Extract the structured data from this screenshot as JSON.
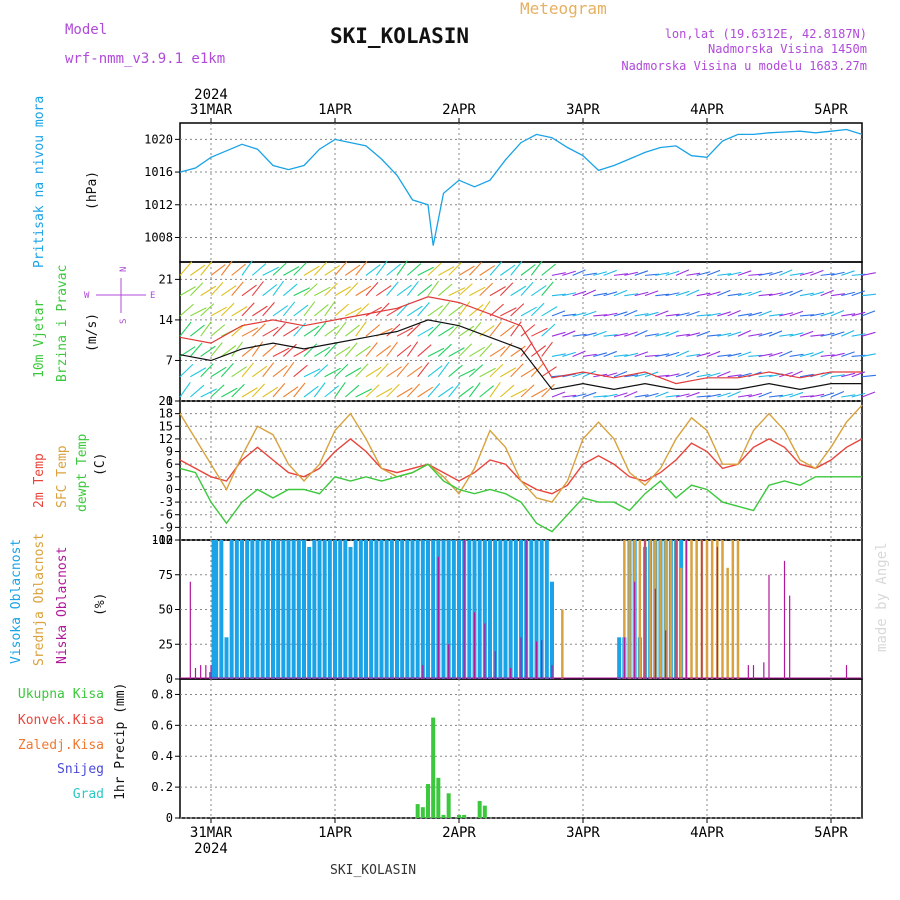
{
  "header": {
    "model_label": "Model",
    "model_name": "wrf-nmm_v3.9.1 e1km",
    "station": "SKI_KOLASIN",
    "product": "Meteogram",
    "coords": "lon,lat (19.6312E, 42.8187N)",
    "elev": "Nadmorska Visina 1450m",
    "model_elev": "Nadmorska Visina u modelu 1683.27m"
  },
  "footer": {
    "station": "SKI_KOLASIN",
    "credit": "made by Angel"
  },
  "colors": {
    "pressure": "#1aa3e6",
    "temp2m": "#e8453c",
    "sfc": "#d9a23e",
    "dew": "#3cc83c",
    "wind_speed": "#111111",
    "wind_gust": "#e03a3a",
    "high_cloud": "#1aa3e6",
    "mid_cloud": "#d9a23e",
    "low_cloud": "#b0189a",
    "precip_total": "#3cc83c",
    "compass": "#b04ad8"
  },
  "time_axis": {
    "year": "2024",
    "days": [
      "31MAR",
      "1APR",
      "2APR",
      "3APR",
      "4APR",
      "5APR"
    ],
    "hours_total": 132
  },
  "panels": {
    "pressure": {
      "label": "Pritisak na nivou mora",
      "unit": "(hPa)"
    },
    "wind": {
      "label1": "10m Vjetar",
      "label2": "Brzina i Pravac",
      "unit": "(m/s)",
      "compass_e": "E",
      "compass_w": "W",
      "compass_n": "N",
      "compass_s": "S"
    },
    "temp": {
      "label1": "2m Temp",
      "label2": "SFC Temp",
      "label3": "dewpt Temp",
      "unit": "(C)"
    },
    "cloud": {
      "label1": "Visoka Oblacnost",
      "label2": "Srednja Oblacnost",
      "label3": "Niska Oblacnost",
      "unit": "(%)"
    },
    "precip": {
      "labels": [
        "Ukupna Kisa",
        "Konvek.Kisa",
        "Zaledj.Kisa",
        "Snijeg",
        "Grad"
      ],
      "unit": "1hr Precip (mm)"
    }
  },
  "chart_data": [
    {
      "type": "line",
      "name": "pressure",
      "ylabel": "(hPa)",
      "ylim": [
        1005,
        1022
      ],
      "yticks": [
        1008,
        1012,
        1016,
        1020
      ],
      "x": [
        0,
        3,
        6,
        9,
        12,
        15,
        18,
        21,
        24,
        27,
        30,
        33,
        36,
        39,
        42,
        45,
        48,
        49,
        51,
        54,
        57,
        60,
        63,
        66,
        69,
        72,
        75,
        78,
        81,
        84,
        87,
        90,
        93,
        96,
        99,
        102,
        105,
        108,
        111,
        114,
        117,
        120,
        123,
        126,
        129,
        132
      ],
      "values": [
        1016,
        1016.5,
        1017.8,
        1018.6,
        1019.4,
        1018.8,
        1016.8,
        1016.3,
        1016.8,
        1018.8,
        1020.0,
        1019.6,
        1019.2,
        1017.6,
        1015.6,
        1012.6,
        1012.0,
        1007.0,
        1013.4,
        1015.0,
        1014.2,
        1015.0,
        1017.5,
        1019.6,
        1020.6,
        1020.2,
        1019.0,
        1018.0,
        1016.2,
        1016.8,
        1017.6,
        1018.4,
        1019.0,
        1019.2,
        1018.0,
        1017.8,
        1019.8,
        1020.6,
        1020.6,
        1020.8,
        1020.9,
        1021.0,
        1020.8,
        1021.0,
        1021.2,
        1020.6
      ]
    },
    {
      "type": "line",
      "name": "wind",
      "ylabel": "(m/s)",
      "ylim": [
        0,
        24
      ],
      "yticks": [
        0,
        7,
        14,
        21
      ],
      "x": [
        0,
        6,
        12,
        18,
        24,
        30,
        36,
        42,
        48,
        54,
        60,
        66,
        72,
        78,
        84,
        90,
        96,
        102,
        108,
        114,
        120,
        126,
        132
      ],
      "series": [
        {
          "key": "speed",
          "values": [
            8,
            7,
            9,
            10,
            9,
            10,
            11,
            12,
            14,
            13,
            11,
            9,
            2,
            3,
            2,
            3,
            2,
            2,
            2,
            3,
            2,
            3,
            3
          ]
        },
        {
          "key": "gust",
          "values": [
            11,
            10,
            13,
            14,
            13,
            14,
            15,
            16,
            18,
            17,
            15,
            13,
            4,
            5,
            4,
            5,
            3,
            4,
            4,
            5,
            4,
            5,
            5
          ]
        }
      ]
    },
    {
      "type": "line",
      "name": "temperature",
      "ylabel": "(C)",
      "ylim": [
        -12,
        21
      ],
      "yticks": [
        -12,
        -9,
        -6,
        -3,
        0,
        3,
        6,
        9,
        12,
        15,
        18,
        21
      ],
      "x": [
        0,
        3,
        6,
        9,
        12,
        15,
        18,
        21,
        24,
        27,
        30,
        33,
        36,
        39,
        42,
        45,
        48,
        51,
        54,
        57,
        60,
        63,
        66,
        69,
        72,
        75,
        78,
        81,
        84,
        87,
        90,
        93,
        96,
        99,
        102,
        105,
        108,
        111,
        114,
        117,
        120,
        123,
        126,
        129,
        132
      ],
      "series": [
        {
          "key": "t2m",
          "values": [
            7,
            5,
            3,
            2,
            7,
            10,
            7,
            4,
            3,
            5,
            9,
            12,
            9,
            5,
            4,
            5,
            6,
            4,
            2,
            4,
            7,
            6,
            2,
            0,
            -1,
            1,
            6,
            8,
            6,
            3,
            2,
            4,
            7,
            11,
            9,
            5,
            6,
            10,
            12,
            10,
            6,
            5,
            7,
            10,
            12
          ]
        },
        {
          "key": "sfc",
          "values": [
            18,
            12,
            6,
            0,
            8,
            15,
            13,
            6,
            2,
            6,
            14,
            18,
            12,
            5,
            3,
            4,
            6,
            3,
            -1,
            5,
            14,
            10,
            2,
            -2,
            -3,
            2,
            12,
            16,
            12,
            4,
            1,
            5,
            12,
            17,
            14,
            6,
            6,
            14,
            18,
            14,
            7,
            5,
            10,
            16,
            20
          ]
        },
        {
          "key": "dew",
          "values": [
            5,
            4,
            -3,
            -8,
            -3,
            0,
            -2,
            0,
            0,
            -1,
            3,
            2,
            3,
            2,
            3,
            4,
            6,
            2,
            0,
            -1,
            0,
            -1,
            -3,
            -8,
            -10,
            -6,
            -2,
            -3,
            -3,
            -5,
            -1,
            2,
            -2,
            1,
            0,
            -3,
            -4,
            -5,
            1,
            2,
            1,
            3,
            3,
            3,
            3
          ]
        }
      ]
    },
    {
      "type": "bar",
      "name": "cloud_cover",
      "ylabel": "(%)",
      "ylim": [
        0,
        100
      ],
      "yticks": [
        0,
        25,
        50,
        75,
        100
      ],
      "series": [
        {
          "key": "high",
          "bars": [
            [
              6,
              5
            ],
            [
              6.5,
              100
            ],
            [
              7,
              100
            ],
            [
              8,
              100
            ],
            [
              9,
              30
            ],
            [
              10,
              100
            ],
            [
              11,
              100
            ],
            [
              12,
              100
            ],
            [
              13,
              100
            ],
            [
              14,
              100
            ],
            [
              15,
              100
            ],
            [
              16,
              100
            ],
            [
              17,
              100
            ],
            [
              18,
              100
            ],
            [
              19,
              100
            ],
            [
              20,
              100
            ],
            [
              21,
              100
            ],
            [
              22,
              100
            ],
            [
              23,
              100
            ],
            [
              24,
              100
            ],
            [
              25,
              95
            ],
            [
              26,
              100
            ],
            [
              27,
              100
            ],
            [
              28,
              100
            ],
            [
              29,
              100
            ],
            [
              30,
              100
            ],
            [
              31,
              100
            ],
            [
              32,
              100
            ],
            [
              33,
              95
            ],
            [
              34,
              100
            ],
            [
              35,
              100
            ],
            [
              36,
              100
            ],
            [
              37,
              100
            ],
            [
              38,
              100
            ],
            [
              39,
              100
            ],
            [
              40,
              100
            ],
            [
              41,
              100
            ],
            [
              42,
              100
            ],
            [
              43,
              100
            ],
            [
              44,
              100
            ],
            [
              45,
              100
            ],
            [
              46,
              100
            ],
            [
              47,
              100
            ],
            [
              48,
              100
            ],
            [
              49,
              100
            ],
            [
              50,
              100
            ],
            [
              51,
              100
            ],
            [
              52,
              100
            ],
            [
              53,
              100
            ],
            [
              54,
              100
            ],
            [
              55,
              100
            ],
            [
              56,
              100
            ],
            [
              57,
              100
            ],
            [
              58,
              100
            ],
            [
              59,
              100
            ],
            [
              60,
              100
            ],
            [
              61,
              100
            ],
            [
              62,
              100
            ],
            [
              63,
              100
            ],
            [
              64,
              100
            ],
            [
              65,
              100
            ],
            [
              66,
              100
            ],
            [
              67,
              100
            ],
            [
              68,
              100
            ],
            [
              69,
              100
            ],
            [
              70,
              100
            ],
            [
              71,
              100
            ],
            [
              72,
              70
            ],
            [
              85,
              30
            ],
            [
              86,
              30
            ],
            [
              87,
              100
            ],
            [
              88,
              100
            ],
            [
              89,
              30
            ],
            [
              90,
              95
            ],
            [
              91,
              100
            ],
            [
              92,
              100
            ],
            [
              93,
              100
            ],
            [
              94,
              100
            ],
            [
              95,
              100
            ],
            [
              96,
              100
            ],
            [
              97,
              100
            ]
          ]
        },
        {
          "key": "mid",
          "bars": [
            [
              74,
              50
            ],
            [
              86,
              100
            ],
            [
              87,
              100
            ],
            [
              88,
              100
            ],
            [
              89,
              100
            ],
            [
              90,
              100
            ],
            [
              91,
              100
            ],
            [
              92,
              100
            ],
            [
              93,
              100
            ],
            [
              94,
              100
            ],
            [
              95,
              100
            ],
            [
              96,
              100
            ],
            [
              97,
              80
            ],
            [
              98,
              100
            ],
            [
              99,
              100
            ],
            [
              100,
              100
            ],
            [
              101,
              100
            ],
            [
              102,
              100
            ],
            [
              103,
              100
            ],
            [
              104,
              100
            ],
            [
              105,
              100
            ],
            [
              106,
              80
            ],
            [
              107,
              100
            ],
            [
              108,
              100
            ]
          ]
        },
        {
          "key": "low",
          "bars": [
            [
              2,
              70
            ],
            [
              3,
              8
            ],
            [
              4,
              10
            ],
            [
              5,
              10
            ],
            [
              6,
              10
            ],
            [
              47,
              10
            ],
            [
              50,
              88
            ],
            [
              52,
              25
            ],
            [
              55,
              100
            ],
            [
              57,
              48
            ],
            [
              59,
              40
            ],
            [
              61,
              20
            ],
            [
              64,
              8
            ],
            [
              66,
              30
            ],
            [
              67,
              100
            ],
            [
              69,
              27
            ],
            [
              70,
              28
            ],
            [
              72,
              10
            ],
            [
              86,
              30
            ],
            [
              88,
              70
            ],
            [
              90,
              100
            ],
            [
              92,
              65
            ],
            [
              94,
              35
            ],
            [
              96,
              100
            ],
            [
              98,
              100
            ],
            [
              101,
              100
            ],
            [
              104,
              95
            ],
            [
              110,
              10
            ],
            [
              111,
              10
            ],
            [
              113,
              12
            ],
            [
              114,
              75
            ],
            [
              117,
              85
            ],
            [
              118,
              60
            ],
            [
              129,
              10
            ]
          ]
        }
      ]
    },
    {
      "type": "bar",
      "name": "precipitation",
      "ylabel": "1hr Precip (mm)",
      "ylim": [
        0,
        0.9
      ],
      "yticks": [
        0,
        0.2,
        0.4,
        0.6,
        0.8
      ],
      "series": [
        {
          "key": "total",
          "bars": [
            [
              46,
              0.09
            ],
            [
              47,
              0.07
            ],
            [
              48,
              0.22
            ],
            [
              49,
              0.65
            ],
            [
              50,
              0.26
            ],
            [
              51,
              0.02
            ],
            [
              52,
              0.16
            ],
            [
              54,
              0.02
            ],
            [
              55,
              0.02
            ],
            [
              58,
              0.11
            ],
            [
              59,
              0.08
            ]
          ]
        }
      ]
    }
  ]
}
